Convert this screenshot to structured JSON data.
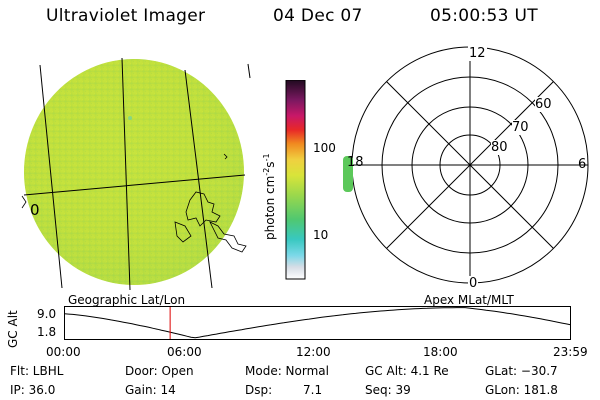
{
  "header": {
    "instrument": "Ultraviolet Imager",
    "date": "04 Dec 07",
    "time": "05:00:53 UT"
  },
  "colorbar": {
    "label": "photon cm",
    "label_sup1": "-2",
    "label_mid": "s",
    "label_sup2": "-1",
    "tick_labels": [
      "100",
      "10"
    ]
  },
  "left_map": {
    "title": "Geographic Lat/Lon",
    "edge_label": "0"
  },
  "right_map": {
    "title": "Apex MLat/MLT",
    "mlt_labels": {
      "top": "12",
      "right": "6",
      "bottom": "0",
      "left": "18"
    },
    "mlat_labels": [
      "60",
      "70",
      "80"
    ]
  },
  "altitude_plot": {
    "ylabel": "GC Alt",
    "yticks": [
      "9.0",
      "1.8"
    ],
    "xticks": [
      "00:00",
      "06:00",
      "12:00",
      "18:00",
      "23:59"
    ],
    "marker_time_hours": 5.01
  },
  "info": {
    "flt": "Flt: LBHL",
    "ip": "IP: 36.0",
    "door": "Door: Open",
    "gain": "Gain: 14",
    "mode": "Mode: Normal",
    "dsp_label": "Dsp:",
    "dsp_value": "7.1",
    "gcalt": "GC Alt: 4.1 Re",
    "seq": "Seq: 39",
    "glat": "GLat: −30.7",
    "glon": "GLon: 181.8"
  },
  "colors": {
    "disk_green": "#c6e23e",
    "marker_red": "#dd0000"
  }
}
